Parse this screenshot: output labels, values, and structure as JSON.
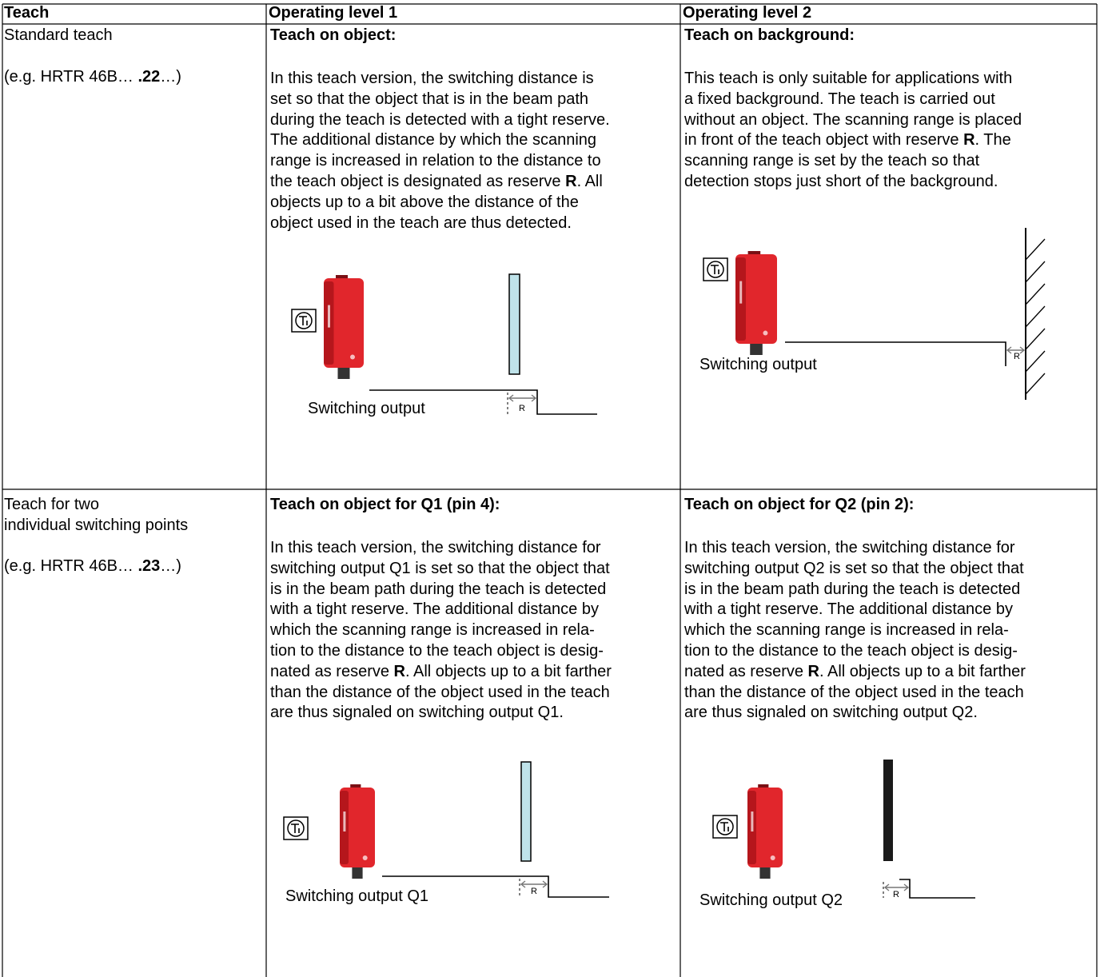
{
  "header": {
    "cells": [
      "Teach",
      "Operating level 1",
      "Operating level 2"
    ]
  },
  "rows": [
    {
      "teach": {
        "name_lines": [
          "Standard teach"
        ],
        "example": [
          "(e.g. HRTR 46B… ",
          ".22",
          "…)"
        ]
      },
      "levels": [
        {
          "heading": "Teach on object:",
          "lines": [
            [
              "In this teach version, the switching distance is"
            ],
            [
              "set so that the object that is in the beam path"
            ],
            [
              "during the teach is detected with a tight reserve."
            ],
            [
              "The additional distance by which the scanning"
            ],
            [
              "range is increased in relation to the distance to"
            ],
            [
              "the teach object is designated as reserve ",
              "R",
              ". All"
            ],
            [
              "objects up to a bit above the distance of the"
            ],
            [
              "object used in the teach are thus detected."
            ]
          ],
          "diagram": {
            "output_label": "Switching output",
            "reserve_label": "R"
          }
        },
        {
          "heading": "Teach on background:",
          "lines": [
            [
              "This teach is only suitable for applications with"
            ],
            [
              "a fixed background. The teach is carried out"
            ],
            [
              "without an object. The scanning range is placed"
            ],
            [
              "in front of the teach object with reserve ",
              "R",
              ". The"
            ],
            [
              "scanning range is set by the teach so that"
            ],
            [
              "detection stops just short of the background."
            ]
          ],
          "diagram": {
            "output_label": "Switching output",
            "reserve_label": "R"
          }
        }
      ]
    },
    {
      "teach": {
        "name_lines": [
          "Teach for two",
          "individual switching points"
        ],
        "example": [
          "(e.g. HRTR 46B… ",
          ".23",
          "…)"
        ]
      },
      "levels": [
        {
          "heading": "Teach on object for Q1 (pin 4):",
          "lines": [
            [
              "In this teach version, the switching distance for"
            ],
            [
              "switching output Q1 is set so that the object that"
            ],
            [
              "is in the beam path during the teach is detected"
            ],
            [
              "with a tight reserve. The additional distance by"
            ],
            [
              "which the scanning range is increased in rela-"
            ],
            [
              "tion to the distance to the teach object is desig-"
            ],
            [
              "nated as reserve ",
              "R",
              ". All objects up to a bit farther"
            ],
            [
              "than the distance of the object used in the teach"
            ],
            [
              "are thus signaled on switching output Q1."
            ]
          ],
          "diagram": {
            "output_label": "Switching output Q1",
            "reserve_label": "R"
          }
        },
        {
          "heading": "Teach on object for Q2 (pin 2):",
          "lines": [
            [
              "In this teach version, the switching distance for"
            ],
            [
              "switching output Q2 is set so that the object that"
            ],
            [
              "is in the beam path during the teach is detected"
            ],
            [
              "with a tight reserve. The additional distance by"
            ],
            [
              "which the scanning range is increased in rela-"
            ],
            [
              "tion to the distance to the teach object is desig-"
            ],
            [
              "nated as reserve ",
              "R",
              ". All objects up to a bit farther"
            ],
            [
              "than the distance of the object used in the teach"
            ],
            [
              "are thus signaled on switching output Q2."
            ]
          ],
          "diagram": {
            "output_label": "Switching output Q2",
            "reserve_label": "R"
          }
        }
      ]
    }
  ]
}
